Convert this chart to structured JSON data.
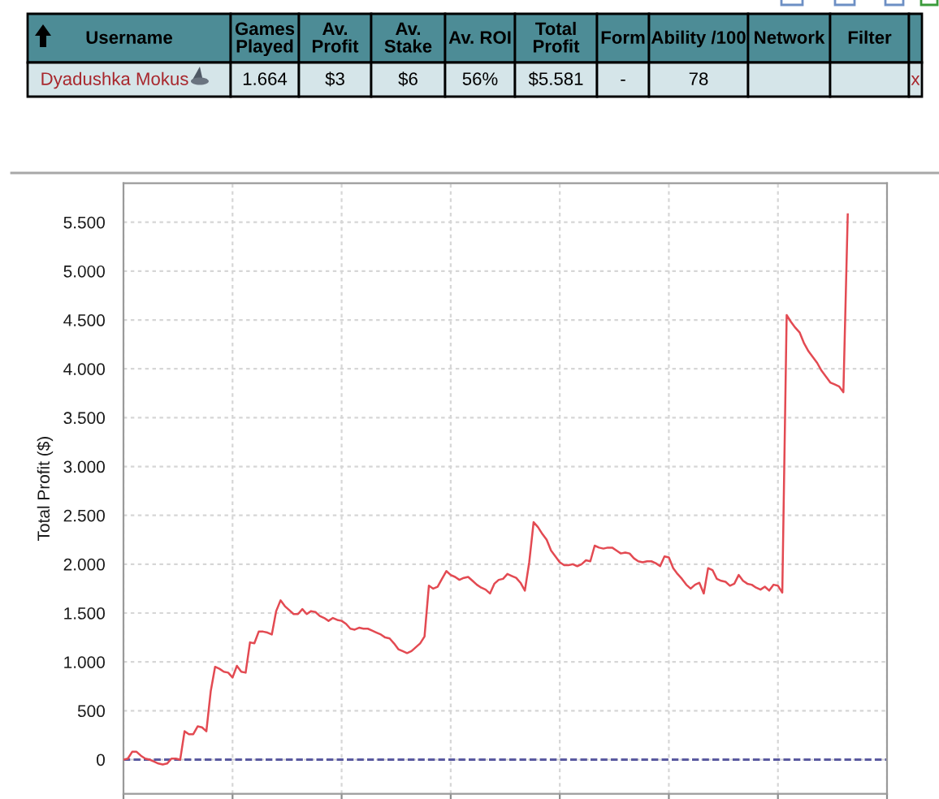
{
  "chart_data": [
    {
      "type": "other",
      "categories": [
        "Username",
        "Games Played",
        "Av. Profit",
        "Av. Stake",
        "Av. ROI",
        "Total Profit",
        "Form",
        "Ability /100",
        "Network",
        "Filter",
        null
      ],
      "cell_labels": [
        [
          "Dyadushka Mokus",
          "1.664",
          "$3",
          "$6",
          "56%",
          "$5.581",
          "-",
          "78",
          null,
          null,
          "x"
        ]
      ]
    },
    {
      "type": "line",
      "ylabel": "Total Profit ($)",
      "categories": [
        null,
        null,
        null,
        null,
        null,
        null,
        null,
        null,
        null,
        null,
        null,
        null,
        null,
        null,
        null,
        null,
        null,
        null,
        null,
        null,
        null,
        null,
        null,
        null,
        null,
        null,
        null,
        null,
        null,
        null,
        null,
        null,
        null,
        null,
        null,
        null,
        null,
        null,
        null,
        null,
        null,
        null,
        null,
        null,
        null,
        null,
        null,
        null,
        null,
        null,
        null,
        null,
        null,
        null,
        null,
        null,
        null,
        null,
        null,
        null,
        null,
        null,
        null,
        null,
        null,
        null,
        null,
        null,
        null,
        null,
        null,
        null,
        null,
        null,
        null,
        null,
        null,
        null,
        null,
        null,
        null,
        null,
        null,
        null,
        null,
        null,
        null,
        null,
        null,
        null,
        null,
        null,
        null,
        null,
        null,
        null,
        null,
        null,
        null,
        null,
        null,
        null,
        null,
        null,
        null,
        null,
        null,
        null,
        null,
        null,
        null,
        null,
        null,
        null,
        null,
        null,
        null,
        null,
        null,
        null,
        null,
        null,
        null,
        null,
        null,
        null,
        null,
        null,
        null,
        null,
        null,
        null,
        null,
        null,
        null,
        null,
        null,
        null,
        null,
        null,
        null,
        null,
        null,
        null,
        null,
        null,
        null,
        null,
        null,
        null,
        null,
        null,
        null,
        null,
        null,
        null,
        null,
        null,
        null,
        null,
        null,
        null,
        null,
        null,
        null,
        null,
        null,
        null,
        null,
        null,
        null,
        null,
        null,
        null,
        null,
        null
      ],
      "values": [
        0,
        10,
        80,
        80,
        40,
        10,
        0,
        -20,
        -40,
        -50,
        -40,
        10,
        10,
        0,
        290,
        260,
        260,
        340,
        330,
        290,
        700,
        950,
        930,
        900,
        890,
        840,
        960,
        900,
        890,
        1200,
        1190,
        1310,
        1310,
        1300,
        1280,
        1520,
        1630,
        1570,
        1530,
        1490,
        1490,
        1540,
        1490,
        1520,
        1510,
        1470,
        1450,
        1420,
        1450,
        1430,
        1420,
        1390,
        1340,
        1330,
        1350,
        1340,
        1340,
        1320,
        1300,
        1280,
        1250,
        1240,
        1190,
        1130,
        1110,
        1090,
        1110,
        1150,
        1190,
        1260,
        1780,
        1750,
        1770,
        1850,
        1930,
        1890,
        1870,
        1840,
        1860,
        1870,
        1830,
        1790,
        1760,
        1740,
        1700,
        1800,
        1840,
        1850,
        1900,
        1880,
        1860,
        1810,
        1730,
        2020,
        2430,
        2380,
        2310,
        2250,
        2140,
        2080,
        2020,
        1990,
        1990,
        2000,
        1980,
        2000,
        2040,
        2030,
        2190,
        2170,
        2160,
        2170,
        2170,
        2140,
        2110,
        2120,
        2110,
        2060,
        2030,
        2020,
        2030,
        2030,
        2010,
        1980,
        2080,
        2070,
        1960,
        1900,
        1850,
        1790,
        1750,
        1790,
        1810,
        1700,
        1960,
        1940,
        1850,
        1830,
        1820,
        1780,
        1800,
        1890,
        1830,
        1800,
        1790,
        1760,
        1740,
        1770,
        1730,
        1790,
        1780,
        1710,
        4550,
        4480,
        4420,
        4370,
        4260,
        4180,
        4120,
        4060,
        3980,
        3920,
        3860,
        3840,
        3820,
        3760,
        5581,
        null,
        null,
        null,
        null,
        null,
        null,
        null,
        null,
        null
      ],
      "color": "#e34a52",
      "ylim": [
        -350,
        5900
      ],
      "yticks": [
        0,
        500,
        {
          "value": 1000,
          "label": "1.000"
        },
        {
          "value": 1500,
          "label": "1.500"
        },
        {
          "value": 2000,
          "label": "2.000"
        },
        {
          "value": 2500,
          "label": "2.500"
        },
        {
          "value": 3000,
          "label": "3.000"
        },
        {
          "value": 3500,
          "label": "3.500"
        },
        {
          "value": 4000,
          "label": "4.000"
        },
        {
          "value": 4500,
          "label": "4.500"
        },
        {
          "value": 5000,
          "label": "5.000"
        },
        {
          "value": 5500,
          "label": "5.500"
        }
      ],
      "ref_lines": [
        {
          "axis": "y",
          "value": 0,
          "color": "#5a5aa0",
          "line_style": "dashed"
        }
      ],
      "grid": true,
      "tick_labels": "y"
    }
  ]
}
